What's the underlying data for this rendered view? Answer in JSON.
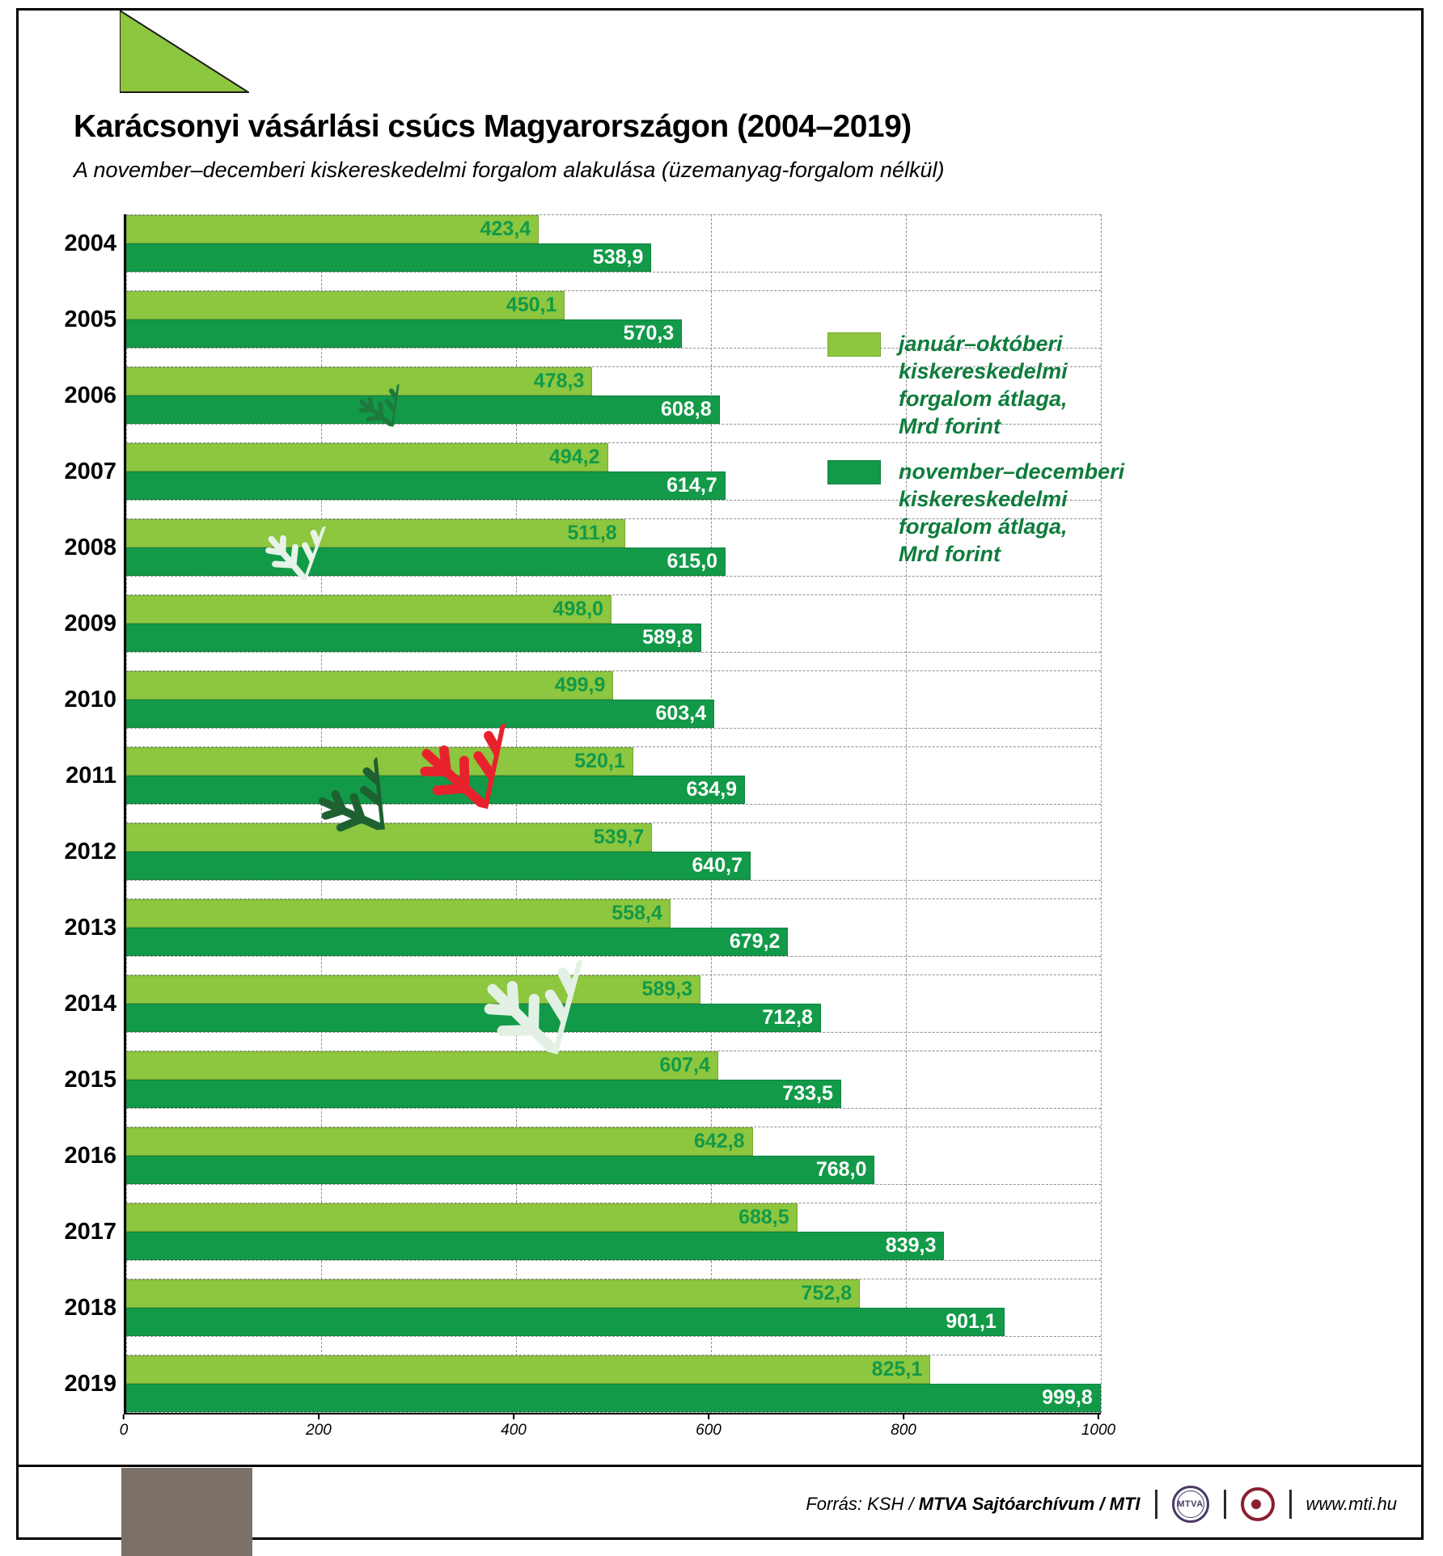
{
  "header": {
    "title": "Karácsonyi vásárlási csúcs Magyarországon (2004–2019)",
    "subtitle": "A november–decemberi kiskereskedelmi forgalom alakulása (üzemanyag-forgalom nélkül)"
  },
  "legend": [
    {
      "label": "január–októberi\nkiskereskedelmi\nforgalom átlaga,\nMrd forint",
      "color": "#8dc63f"
    },
    {
      "label": "november–decemberi\nkiskereskedelmi\nforgalom átlaga,\nMrd forint",
      "color": "#129a49"
    }
  ],
  "chart_data": {
    "type": "bar",
    "orientation": "horizontal",
    "title": "Karácsonyi vásárlási csúcs Magyarországon (2004–2019)",
    "subtitle": "A november–decemberi kiskereskedelmi forgalom alakulása (üzemanyag-forgalom nélkül)",
    "categories": [
      "2004",
      "2005",
      "2006",
      "2007",
      "2008",
      "2009",
      "2010",
      "2011",
      "2012",
      "2013",
      "2014",
      "2015",
      "2016",
      "2017",
      "2018",
      "2019"
    ],
    "series": [
      {
        "name": "január–októberi kiskereskedelmi forgalom átlaga, Mrd forint",
        "color": "#8dc63f",
        "values": [
          423.4,
          450.1,
          478.3,
          494.2,
          511.8,
          498.0,
          499.9,
          520.1,
          539.7,
          558.4,
          589.3,
          607.4,
          642.8,
          688.5,
          752.8,
          825.1
        ]
      },
      {
        "name": "november–decemberi kiskereskedelmi forgalom átlaga, Mrd forint",
        "color": "#129a49",
        "values": [
          538.9,
          570.3,
          608.8,
          614.7,
          615.0,
          589.8,
          603.4,
          634.9,
          640.7,
          679.2,
          712.8,
          733.5,
          768.0,
          839.3,
          901.1,
          999.8
        ]
      }
    ],
    "xlim": [
      0,
      1000
    ],
    "x_ticks": [
      0,
      200,
      400,
      600,
      800,
      1000
    ],
    "value_decimal_separator": ",",
    "grid": "dashed",
    "legend_position": "right"
  },
  "footer": {
    "source_normal": "Forrás: KSH / ",
    "source_bold": "MTVA Sajtóarchívum / MTI",
    "mtva_text": "MTVA",
    "site": "www.mti.hu"
  },
  "decorations": {
    "triangle_color": "#8dc63f",
    "gray_box_color": "#7b7168",
    "snowflakes": [
      {
        "name": "snowflake-dark-green-small",
        "color": "#1c7a3e"
      },
      {
        "name": "snowflake-pale-mint-small",
        "color": "#e7f3e8"
      },
      {
        "name": "snowflake-red-large",
        "color": "#e8222c"
      },
      {
        "name": "snowflake-forest-green-medium",
        "color": "#1d6131"
      },
      {
        "name": "snowflake-pale-mint-large",
        "color": "#e3f1e5"
      }
    ]
  }
}
